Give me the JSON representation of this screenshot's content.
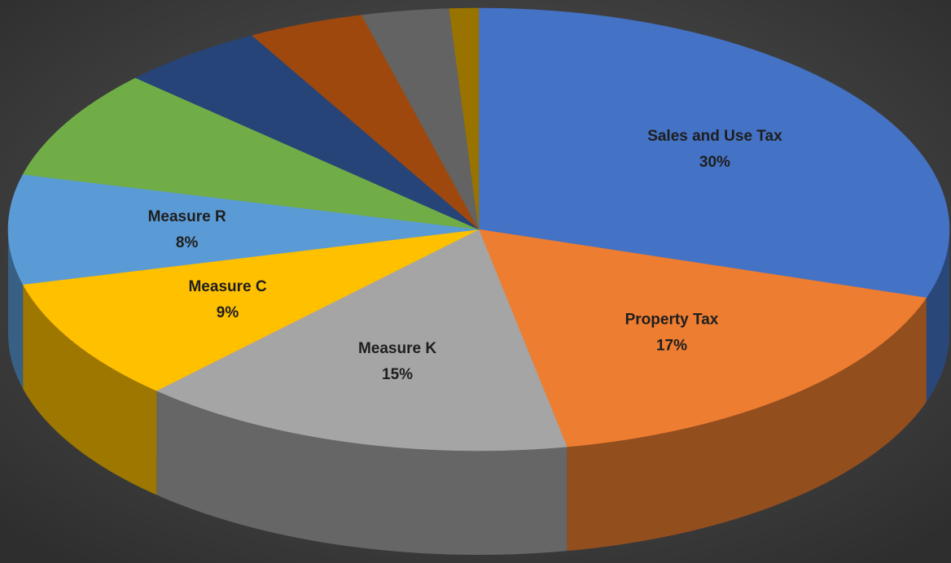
{
  "chart_data": {
    "type": "pie",
    "categories": [
      "Sales and Use Tax",
      "Property Tax",
      "Measure K",
      "Measure C",
      "Measure R",
      null,
      null,
      null,
      null,
      null
    ],
    "values": [
      30,
      17,
      15,
      9,
      8,
      8,
      5,
      4,
      3,
      1
    ],
    "value_labels": [
      "30%",
      "17%",
      "15%",
      "9%",
      "8%",
      null,
      null,
      null,
      null,
      null
    ],
    "colors": [
      "#4472c4",
      "#ed7d31",
      "#a5a5a5",
      "#ffc000",
      "#5b9bd5",
      "#70ad47",
      "#264478",
      "#9e480e",
      "#636363",
      "#997300"
    ],
    "start_angle": -90,
    "direction": "clockwise",
    "three_d": true
  }
}
